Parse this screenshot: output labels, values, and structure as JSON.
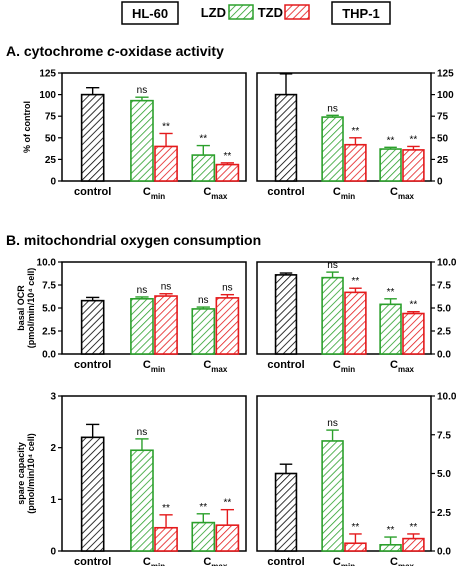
{
  "legend": {
    "cell_left": "HL-60",
    "cell_right": "THP-1",
    "drug1": "LZD",
    "drug2": "TZD",
    "colors": {
      "control": "#000000",
      "LZD": "#2ca02c",
      "TZD": "#e41a1c"
    }
  },
  "sections": {
    "A": {
      "prefix": "A. cytochrome ",
      "italic": "c",
      "suffix": "-oxidase activity"
    },
    "B": {
      "text": "B. mitochondrial oxygen consumption"
    }
  },
  "chart_data": [
    {
      "type": "bar",
      "panel": "A-left",
      "cell_line": "HL-60",
      "ylabel": "% of control",
      "ylim": [
        0,
        125
      ],
      "yticks": [
        "0",
        "25",
        "50",
        "75",
        "100",
        "125"
      ],
      "categories": [
        {
          "base": "control",
          "sub": ""
        },
        {
          "base": "C",
          "sub": "min"
        },
        {
          "base": "C",
          "sub": "max"
        }
      ],
      "bars": [
        {
          "group": 0,
          "series": "control",
          "value": 100,
          "err": 8,
          "label": ""
        },
        {
          "group": 1,
          "series": "LZD",
          "value": 93,
          "err": 4,
          "label": "ns"
        },
        {
          "group": 1,
          "series": "TZD",
          "value": 40,
          "err": 15,
          "label": "**"
        },
        {
          "group": 2,
          "series": "LZD",
          "value": 30,
          "err": 11,
          "label": "**"
        },
        {
          "group": 2,
          "series": "TZD",
          "value": 19,
          "err": 2,
          "label": "**"
        }
      ]
    },
    {
      "type": "bar",
      "panel": "A-right",
      "cell_line": "THP-1",
      "ylabel": "",
      "ylim": [
        0,
        125
      ],
      "yticks": [
        "0",
        "25",
        "50",
        "75",
        "100",
        "125"
      ],
      "categories": [
        {
          "base": "control",
          "sub": ""
        },
        {
          "base": "C",
          "sub": "min"
        },
        {
          "base": "C",
          "sub": "max"
        }
      ],
      "bars": [
        {
          "group": 0,
          "series": "control",
          "value": 100,
          "err": 24,
          "label": ""
        },
        {
          "group": 1,
          "series": "LZD",
          "value": 74,
          "err": 2,
          "label": "ns"
        },
        {
          "group": 1,
          "series": "TZD",
          "value": 42,
          "err": 8,
          "label": "**"
        },
        {
          "group": 2,
          "series": "LZD",
          "value": 37,
          "err": 2,
          "label": "**"
        },
        {
          "group": 2,
          "series": "TZD",
          "value": 36,
          "err": 4,
          "label": "**"
        }
      ]
    },
    {
      "type": "bar",
      "panel": "B1-left",
      "cell_line": "HL-60",
      "ylabel": "basal OCR",
      "ylabel2": "(pmol/min/10⁴ cell)",
      "ylim": [
        0,
        10
      ],
      "yticks": [
        "0.0",
        "2.5",
        "5.0",
        "7.5",
        "10.0"
      ],
      "categories": [
        {
          "base": "control",
          "sub": ""
        },
        {
          "base": "C",
          "sub": "min"
        },
        {
          "base": "C",
          "sub": "max"
        }
      ],
      "bars": [
        {
          "group": 0,
          "series": "control",
          "value": 5.8,
          "err": 0.35,
          "label": ""
        },
        {
          "group": 1,
          "series": "LZD",
          "value": 6.0,
          "err": 0.2,
          "label": "ns"
        },
        {
          "group": 1,
          "series": "TZD",
          "value": 6.3,
          "err": 0.25,
          "label": "ns"
        },
        {
          "group": 2,
          "series": "LZD",
          "value": 4.9,
          "err": 0.2,
          "label": "ns"
        },
        {
          "group": 2,
          "series": "TZD",
          "value": 6.1,
          "err": 0.35,
          "label": "ns"
        }
      ]
    },
    {
      "type": "bar",
      "panel": "B1-right",
      "cell_line": "THP-1",
      "ylabel": "",
      "ylim": [
        0,
        10
      ],
      "yticks": [
        "0.0",
        "2.5",
        "5.0",
        "7.5",
        "10.0"
      ],
      "categories": [
        {
          "base": "control",
          "sub": ""
        },
        {
          "base": "C",
          "sub": "min"
        },
        {
          "base": "C",
          "sub": "max"
        }
      ],
      "bars": [
        {
          "group": 0,
          "series": "control",
          "value": 8.6,
          "err": 0.2,
          "label": ""
        },
        {
          "group": 1,
          "series": "LZD",
          "value": 8.3,
          "err": 0.6,
          "label": "ns"
        },
        {
          "group": 1,
          "series": "TZD",
          "value": 6.7,
          "err": 0.45,
          "label": "**"
        },
        {
          "group": 2,
          "series": "LZD",
          "value": 5.4,
          "err": 0.6,
          "label": "**"
        },
        {
          "group": 2,
          "series": "TZD",
          "value": 4.4,
          "err": 0.2,
          "label": "**"
        }
      ]
    },
    {
      "type": "bar",
      "panel": "B2-left",
      "cell_line": "HL-60",
      "ylabel": "spare capacity",
      "ylabel2": "(pmol/min/10⁴ cell)",
      "ylim": [
        0,
        3
      ],
      "yticks": [
        "0",
        "1",
        "2",
        "3"
      ],
      "categories": [
        {
          "base": "control",
          "sub": ""
        },
        {
          "base": "C",
          "sub": "min"
        },
        {
          "base": "C",
          "sub": "max"
        }
      ],
      "bars": [
        {
          "group": 0,
          "series": "control",
          "value": 2.2,
          "err": 0.25,
          "label": ""
        },
        {
          "group": 1,
          "series": "LZD",
          "value": 1.95,
          "err": 0.22,
          "label": "ns"
        },
        {
          "group": 1,
          "series": "TZD",
          "value": 0.45,
          "err": 0.25,
          "label": "**"
        },
        {
          "group": 2,
          "series": "LZD",
          "value": 0.55,
          "err": 0.17,
          "label": "**"
        },
        {
          "group": 2,
          "series": "TZD",
          "value": 0.5,
          "err": 0.3,
          "label": "**"
        }
      ]
    },
    {
      "type": "bar",
      "panel": "B2-right",
      "cell_line": "THP-1",
      "ylabel": "",
      "ylim": [
        0,
        10
      ],
      "yticks": [
        "0.0",
        "2.5",
        "5.0",
        "7.5",
        "10.0"
      ],
      "categories": [
        {
          "base": "control",
          "sub": ""
        },
        {
          "base": "C",
          "sub": "min"
        },
        {
          "base": "C",
          "sub": "max"
        }
      ],
      "bars": [
        {
          "group": 0,
          "series": "control",
          "value": 5.0,
          "err": 0.6,
          "label": ""
        },
        {
          "group": 1,
          "series": "LZD",
          "value": 7.1,
          "err": 0.7,
          "label": "ns"
        },
        {
          "group": 1,
          "series": "TZD",
          "value": 0.5,
          "err": 0.6,
          "label": "**"
        },
        {
          "group": 2,
          "series": "LZD",
          "value": 0.4,
          "err": 0.5,
          "label": "**"
        },
        {
          "group": 2,
          "series": "TZD",
          "value": 0.8,
          "err": 0.3,
          "label": "**"
        }
      ]
    }
  ]
}
